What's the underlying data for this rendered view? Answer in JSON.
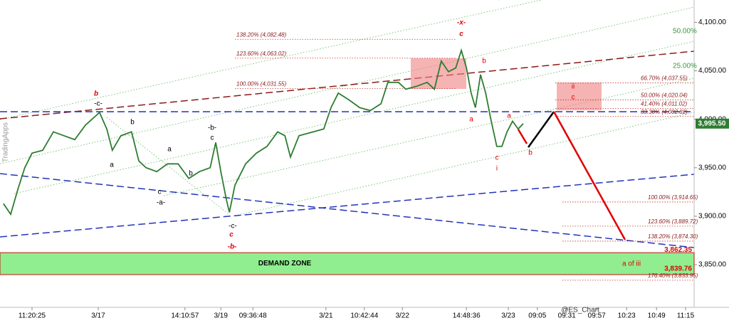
{
  "chart_data": {
    "type": "line",
    "color": "#2e7d32",
    "x": [
      0.8,
      2.5,
      4.2,
      5.8,
      7.5,
      10,
      12.5,
      15,
      17.5,
      20,
      23.3,
      25,
      26.3,
      28.3,
      30.8,
      32.5,
      34.2,
      36.7,
      39.2,
      41.7,
      44.2,
      46.7,
      49.2,
      50.5,
      51.7,
      53,
      53.7,
      55,
      57.5,
      60,
      62.5,
      65,
      66.7,
      68,
      70,
      73.3,
      75.8,
      77.5,
      79.2,
      81.7,
      84.2,
      86.7,
      89.2,
      90.8,
      93.3,
      95,
      97.5,
      100,
      101.7,
      103.3,
      105,
      106.7,
      108,
      109.2,
      110.3,
      111.3,
      112.5,
      113.7,
      115,
      116.3,
      117.5,
      118.7,
      120,
      121.3,
      122.5
    ],
    "values": [
      3913,
      3902,
      3928,
      3950,
      3965,
      3968,
      3987,
      3983,
      3979,
      3994,
      4007,
      3990,
      3968,
      3983,
      3987,
      3957,
      3950,
      3946,
      3954,
      3954,
      3939,
      3946,
      3950,
      3976,
      3946,
      3917,
      3904,
      3932,
      3954,
      3965,
      3972,
      3987,
      3983,
      3961,
      3983,
      3987,
      3990,
      4012,
      4027,
      4020,
      4012,
      4009,
      4016,
      4038,
      4038,
      4031,
      4034,
      4038,
      4031,
      4060,
      4049,
      4053,
      4071,
      4053,
      4027,
      4012,
      4046,
      4027,
      3998,
      3972,
      3972,
      3987,
      3998,
      3990,
      3995.5
    ],
    "xlim": [
      0,
      162.5
    ],
    "ylim": [
      3806,
      4123
    ],
    "xticks": [
      {
        "value": 7.5,
        "label": "11:20:25"
      },
      {
        "value": 23,
        "label": "3/17"
      },
      {
        "value": 43.3,
        "label": "14:10:57"
      },
      {
        "value": 51.7,
        "label": "3/19"
      },
      {
        "value": 59.2,
        "label": "09:36:48"
      },
      {
        "value": 76.3,
        "label": "3/21"
      },
      {
        "value": 85.3,
        "label": "10:42:44"
      },
      {
        "value": 94.2,
        "label": "3/22"
      },
      {
        "value": 109.2,
        "label": "14:48:36"
      },
      {
        "value": 119,
        "label": "3/23"
      },
      {
        "value": 125.8,
        "label": "09:05"
      },
      {
        "value": 132.7,
        "label": "09:31"
      },
      {
        "value": 139.7,
        "label": "09:57"
      },
      {
        "value": 146.7,
        "label": "10:23"
      },
      {
        "value": 153.7,
        "label": "10:49"
      },
      {
        "value": 160.5,
        "label": "11:15"
      }
    ],
    "yticks": [
      {
        "value": 4100,
        "label": "4,100.00"
      },
      {
        "value": 4050,
        "label": "4,050.00"
      },
      {
        "value": 4000,
        "label": "4,000.00"
      },
      {
        "value": 3950,
        "label": "3,950.00"
      },
      {
        "value": 3900,
        "label": "3,900.00"
      },
      {
        "value": 3850,
        "label": "3,850.00"
      }
    ],
    "last_price": {
      "value": 3995.5,
      "label": "3,995.50"
    },
    "levels": [
      {
        "label": "138.20% (4,082.48)",
        "value": 4082.48
      },
      {
        "label": "123.60% (4,063.02)",
        "value": 4063.02
      },
      {
        "label": "100.00% (4,031.55)",
        "value": 4031.55
      },
      {
        "label": "66.70% (4,037.55)",
        "value": 4037.55
      },
      {
        "label": "50.00% (4,020.04)",
        "value": 4020.04
      },
      {
        "label": "41.40% (4,011.02)",
        "value": 4011.02
      },
      {
        "label": "33.30% (4,002.82)",
        "value": 4002.82
      },
      {
        "label": "100.00% (3,914.65)",
        "value": 3914.65
      },
      {
        "label": "123.60% (3,889.72)",
        "value": 3889.72
      },
      {
        "label": "138.20% (3,874.30)",
        "value": 3874.3
      },
      {
        "label": "176.40% (3,833.95)",
        "value": 3833.95
      }
    ],
    "zone": {
      "label": "DEMAND ZONE",
      "top": {
        "value": 3862.35,
        "label": "3,862.35"
      },
      "bottom": {
        "value": 3839.76,
        "label": "3,839.76"
      }
    },
    "annotations": [
      {
        "text": "b",
        "color": "#e00000"
      },
      {
        "text": "-c-",
        "color": "#000000"
      },
      {
        "text": "b",
        "color": "#000000"
      },
      {
        "text": "a",
        "color": "#000000"
      },
      {
        "text": "a",
        "color": "#000000"
      },
      {
        "text": "b",
        "color": "#000000"
      },
      {
        "text": "c",
        "color": "#000000"
      },
      {
        "text": "-a-",
        "color": "#000000"
      },
      {
        "text": "-b-",
        "color": "#000000"
      },
      {
        "text": "c",
        "color": "#000000"
      },
      {
        "text": "-c-",
        "color": "#000000"
      },
      {
        "text": "c",
        "color": "#e00000"
      },
      {
        "text": "-b-",
        "color": "#e00000"
      },
      {
        "text": "-x-",
        "color": "#e00000"
      },
      {
        "text": "c",
        "color": "#e00000"
      },
      {
        "text": "b",
        "color": "#e00000"
      },
      {
        "text": "a",
        "color": "#e00000"
      },
      {
        "text": "c",
        "color": "#e00000"
      },
      {
        "text": "i",
        "color": "#e00000"
      },
      {
        "text": "a",
        "color": "#e00000"
      },
      {
        "text": "b",
        "color": "#e00000"
      },
      {
        "text": "ii",
        "color": "#e00000"
      },
      {
        "text": "c",
        "color": "#e00000"
      },
      {
        "text": "a of iii",
        "color": "#e00000"
      },
      {
        "text": "@ES_Chart",
        "color": "#333333"
      },
      {
        "text": "50.00%",
        "color": "#3a9a3a"
      },
      {
        "text": "25.00%",
        "color": "#3a9a3a"
      },
      {
        "text": "TradingApps",
        "color": "#999999"
      }
    ]
  }
}
